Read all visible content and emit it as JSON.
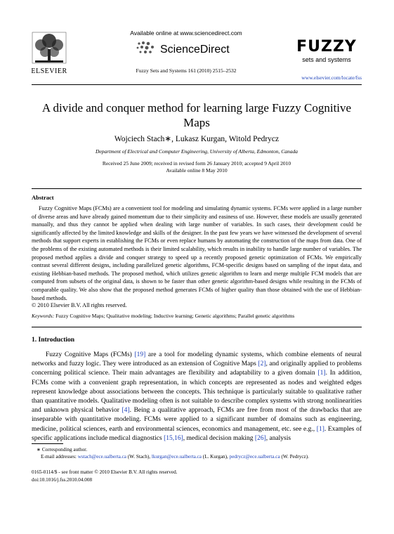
{
  "header": {
    "publisher": "ELSEVIER",
    "available_online": "Available online at www.sciencedirect.com",
    "sciencedirect": "ScienceDirect",
    "journal_ref": "Fuzzy Sets and Systems 161 (2010) 2515–2532",
    "journal_logo": "FUZZY",
    "journal_logo_sub": "sets and systems",
    "url": "www.elsevier.com/locate/fss"
  },
  "article": {
    "title": "A divide and conquer method for learning large Fuzzy Cognitive Maps",
    "authors": "Wojciech Stach∗, Lukasz Kurgan, Witold Pedrycz",
    "affiliation": "Department of Electrical and Computer Engineering, University of Alberta, Edmonton, Canada",
    "received": "Received 25 June 2009; received in revised form 26 January 2010; accepted 9 April 2010",
    "online": "Available online 8 May 2010"
  },
  "abstract": {
    "heading": "Abstract",
    "text": "Fuzzy Cognitive Maps (FCMs) are a convenient tool for modeling and simulating dynamic systems. FCMs were applied in a large number of diverse areas and have already gained momentum due to their simplicity and easiness of use. However, these models are usually generated manually, and thus they cannot be applied when dealing with large number of variables. In such cases, their development could be significantly affected by the limited knowledge and skills of the designer. In the past few years we have witnessed the development of several methods that support experts in establishing the FCMs or even replace humans by automating the construction of the maps from data. One of the problems of the existing automated methods is their limited scalability, which results in inability to handle large number of variables. The proposed method applies a divide and conquer strategy to speed up a recently proposed genetic optimization of FCMs. We empirically contrast several different designs, including parallelized genetic algorithms, FCM-specific designs based on sampling of the input data, and existing Hebbian-based methods. The proposed method, which utilizes genetic algorithm to learn and merge multiple FCM models that are computed from subsets of the original data, is shown to be faster than other genetic algorithm-based designs while resulting in the FCMs of comparable quality. We also show that the proposed method generates FCMs of higher quality than those obtained with the use of Hebbian-based methods.",
    "copyright": "© 2010 Elsevier B.V. All rights reserved."
  },
  "keywords": {
    "label": "Keywords:",
    "text": "Fuzzy Cognitive Maps; Qualitative modeling; Inductive learning; Genetic algorithms; Parallel genetic algorithms"
  },
  "section": {
    "heading": "1. Introduction",
    "paragraph": [
      "Fuzzy Cognitive Maps (FCMs) ",
      "[19]",
      " are a tool for modeling dynamic systems, which combine elements of neural networks and fuzzy logic. They were introduced as an extension of Cognitive Maps ",
      "[2]",
      ", and originally applied to problems concerning political science. Their main advantages are flexibility and adaptability to a given domain ",
      "[1]",
      ". In addition, FCMs come with a convenient graph representation, in which concepts are represented as nodes and weighted edges represent knowledge about associations between the concepts. This technique is particularly suitable to qualitative rather than quantitative models. Qualitative modeling often is not suitable to describe complex systems with strong nonlinearities and unknown physical behavior ",
      "[4]",
      ". Being a qualitative approach, FCMs are free from most of the drawbacks that are inseparable with quantitative modeling. FCMs were applied to a significant number of domains such as engineering, medicine, political sciences, earth and environmental sciences, economics and management, etc. see e.g., ",
      "[1]",
      ". Examples of specific applications include medical diagnostics ",
      "[15,16]",
      ", medical decision making ",
      "[26]",
      ", analysis"
    ]
  },
  "footnote": {
    "corresponding": "∗ Corresponding author.",
    "emails": [
      "E-mail addresses: ",
      "wstach@ece.ualberta.ca",
      " (W. Stach), ",
      "lkurgan@ece.ualberta.ca",
      " (L. Kurgan), ",
      "pedrycz@ece.ualberta.ca",
      " (W. Pedrycz)."
    ]
  },
  "footer": {
    "front_matter": "0165-0114/$ - see front matter © 2010 Elsevier B.V. All rights reserved.",
    "doi": "doi:10.1016/j.fss.2010.04.008"
  }
}
